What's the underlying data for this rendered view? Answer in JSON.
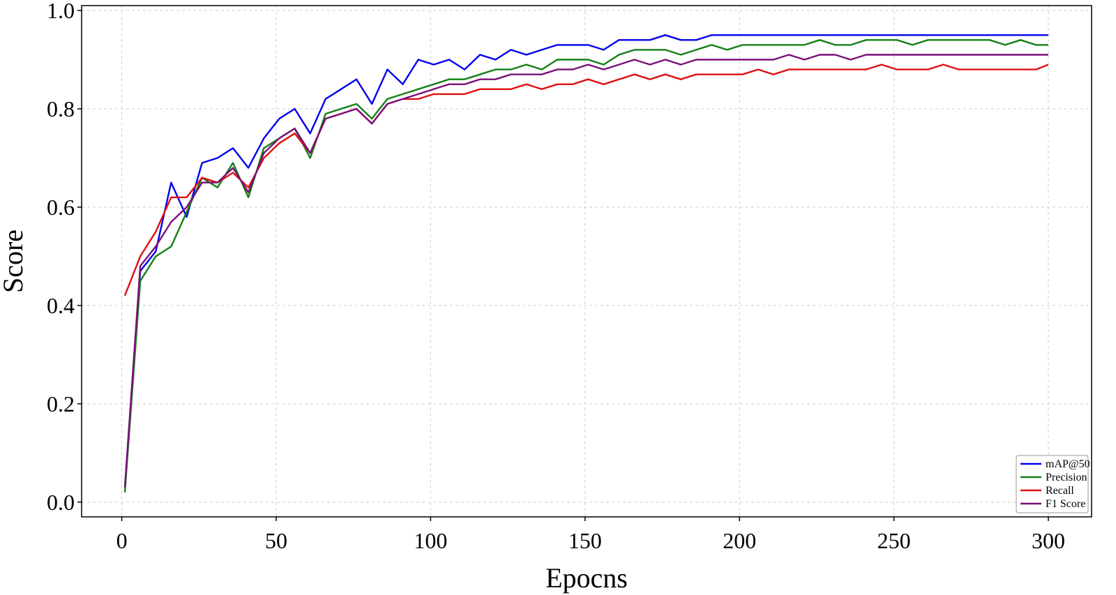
{
  "chart_data": {
    "type": "line",
    "title": "",
    "xlabel": "Epocns",
    "ylabel": "Score",
    "xlim": [
      -13,
      314
    ],
    "ylim": [
      -0.03,
      1.01
    ],
    "xticks": [
      0,
      50,
      100,
      150,
      200,
      250,
      300
    ],
    "yticks": [
      0.0,
      0.2,
      0.4,
      0.6,
      0.8,
      1.0
    ],
    "ytick_labels": [
      "0.0",
      "0.2",
      "0.4",
      "0.6",
      "0.8",
      "1.0"
    ],
    "grid": true,
    "legend_position": "bottom-right",
    "x_start": 1,
    "x_step": 5,
    "series": [
      {
        "name": "mAP@50",
        "color": "#0000ee",
        "values": [
          0.03,
          0.47,
          0.51,
          0.65,
          0.58,
          0.69,
          0.7,
          0.72,
          0.68,
          0.74,
          0.78,
          0.8,
          0.75,
          0.82,
          0.84,
          0.86,
          0.81,
          0.88,
          0.85,
          0.9,
          0.89,
          0.9,
          0.88,
          0.91,
          0.9,
          0.92,
          0.91,
          0.92,
          0.93,
          0.93,
          0.93,
          0.92,
          0.94,
          0.94,
          0.94,
          0.95,
          0.94,
          0.94,
          0.95,
          0.95,
          0.95,
          0.95,
          0.95,
          0.95,
          0.95,
          0.95,
          0.95,
          0.95,
          0.95,
          0.95,
          0.95,
          0.95,
          0.95,
          0.95,
          0.95,
          0.95,
          0.95,
          0.95,
          0.95,
          0.95,
          0.95
        ]
      },
      {
        "name": "Precision",
        "color": "#138013",
        "values": [
          0.02,
          0.45,
          0.5,
          0.52,
          0.59,
          0.66,
          0.64,
          0.69,
          0.62,
          0.72,
          0.74,
          0.76,
          0.7,
          0.79,
          0.8,
          0.81,
          0.78,
          0.82,
          0.83,
          0.84,
          0.85,
          0.86,
          0.86,
          0.87,
          0.88,
          0.88,
          0.89,
          0.88,
          0.9,
          0.9,
          0.9,
          0.89,
          0.91,
          0.92,
          0.92,
          0.92,
          0.91,
          0.92,
          0.93,
          0.92,
          0.93,
          0.93,
          0.93,
          0.93,
          0.93,
          0.94,
          0.93,
          0.93,
          0.94,
          0.94,
          0.94,
          0.93,
          0.94,
          0.94,
          0.94,
          0.94,
          0.94,
          0.93,
          0.94,
          0.93,
          0.93
        ]
      },
      {
        "name": "Recall",
        "color": "#e01010",
        "values": [
          0.42,
          0.5,
          0.55,
          0.62,
          0.62,
          0.66,
          0.65,
          0.67,
          0.64,
          0.7,
          0.73,
          0.75,
          0.71,
          0.78,
          0.79,
          0.8,
          0.77,
          0.81,
          0.82,
          0.82,
          0.83,
          0.83,
          0.83,
          0.84,
          0.84,
          0.84,
          0.85,
          0.84,
          0.85,
          0.85,
          0.86,
          0.85,
          0.86,
          0.87,
          0.86,
          0.87,
          0.86,
          0.87,
          0.87,
          0.87,
          0.87,
          0.88,
          0.87,
          0.88,
          0.88,
          0.88,
          0.88,
          0.88,
          0.88,
          0.89,
          0.88,
          0.88,
          0.88,
          0.89,
          0.88,
          0.88,
          0.88,
          0.88,
          0.88,
          0.88,
          0.89
        ]
      },
      {
        "name": "F1 Score",
        "color": "#7a0f7a",
        "values": [
          0.03,
          0.48,
          0.52,
          0.57,
          0.6,
          0.65,
          0.65,
          0.68,
          0.63,
          0.71,
          0.74,
          0.76,
          0.71,
          0.78,
          0.79,
          0.8,
          0.77,
          0.81,
          0.82,
          0.83,
          0.84,
          0.85,
          0.85,
          0.86,
          0.86,
          0.87,
          0.87,
          0.87,
          0.88,
          0.88,
          0.89,
          0.88,
          0.89,
          0.9,
          0.89,
          0.9,
          0.89,
          0.9,
          0.9,
          0.9,
          0.9,
          0.9,
          0.9,
          0.91,
          0.9,
          0.91,
          0.91,
          0.9,
          0.91,
          0.91,
          0.91,
          0.91,
          0.91,
          0.91,
          0.91,
          0.91,
          0.91,
          0.91,
          0.91,
          0.91,
          0.91
        ]
      }
    ]
  }
}
